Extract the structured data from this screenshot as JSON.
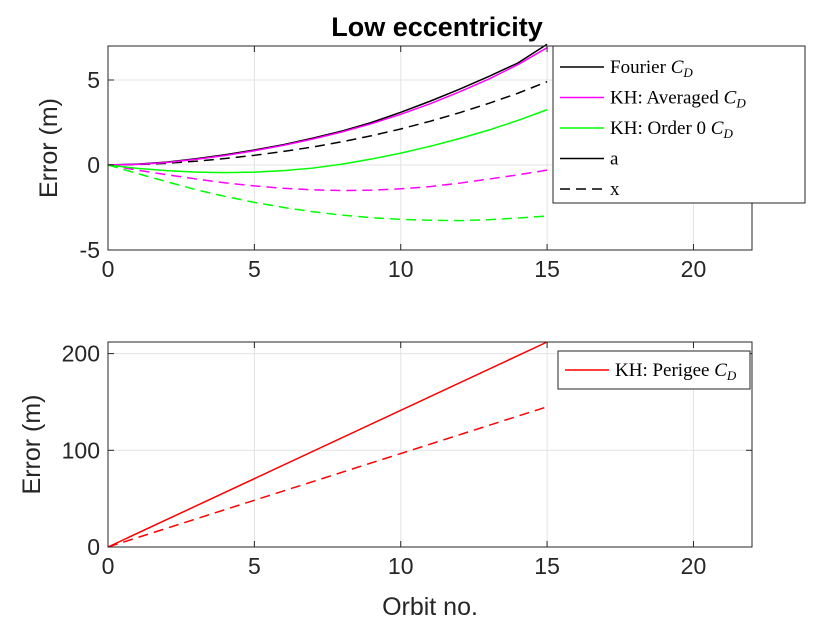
{
  "chart_data": [
    {
      "type": "line",
      "title": "Low eccentricity",
      "xlabel": "",
      "ylabel": "Error (m)",
      "xlim": [
        0,
        22
      ],
      "ylim": [
        -5,
        7
      ],
      "xticks": [
        0,
        5,
        10,
        15,
        20
      ],
      "yticks": [
        -5,
        0,
        5
      ],
      "xtick_labels": [
        "0",
        "5",
        "10",
        "15",
        "20"
      ],
      "ytick_labels": [
        "-5",
        "0",
        "5"
      ],
      "grid": true,
      "legend_position": "top-right",
      "legend": [
        {
          "text": "Fourier ",
          "math": "C",
          "sub": "D",
          "color": "#000000",
          "dash": "solid"
        },
        {
          "text": "KH: Averaged ",
          "math": "C",
          "sub": "D",
          "color": "#ff00ff",
          "dash": "solid"
        },
        {
          "text": "KH: Order 0 ",
          "math": "C",
          "sub": "D",
          "color": "#00ff00",
          "dash": "solid"
        },
        {
          "text": "a",
          "math": "",
          "sub": "",
          "color": "#000000",
          "dash": "solid"
        },
        {
          "text": "x",
          "math": "",
          "sub": "",
          "color": "#000000",
          "dash": "dashed"
        }
      ],
      "series": [
        {
          "name": "Fourier C_D (a)",
          "color": "#000000",
          "dash": "solid",
          "x": [
            0,
            1,
            2,
            3,
            4,
            5,
            6,
            7,
            8,
            9,
            10,
            11,
            12,
            13,
            14,
            15
          ],
          "y": [
            0,
            0.05,
            0.17,
            0.37,
            0.6,
            0.88,
            1.2,
            1.58,
            2.0,
            2.5,
            3.1,
            3.75,
            4.45,
            5.2,
            6.0,
            7.1
          ]
        },
        {
          "name": "Fourier C_D (x)",
          "color": "#000000",
          "dash": "dashed",
          "x": [
            0,
            1,
            2,
            3,
            4,
            5,
            6,
            7,
            8,
            9,
            10,
            11,
            12,
            13,
            14,
            15
          ],
          "y": [
            0,
            0.03,
            0.1,
            0.22,
            0.38,
            0.57,
            0.8,
            1.06,
            1.37,
            1.72,
            2.12,
            2.57,
            3.07,
            3.62,
            4.22,
            4.9
          ]
        },
        {
          "name": "KH: Averaged C_D (a)",
          "color": "#ff00ff",
          "dash": "solid",
          "x": [
            0,
            1,
            2,
            3,
            4,
            5,
            6,
            7,
            8,
            9,
            10,
            11,
            12,
            13,
            14,
            15
          ],
          "y": [
            0,
            0.04,
            0.15,
            0.33,
            0.56,
            0.84,
            1.16,
            1.53,
            1.95,
            2.43,
            2.98,
            3.6,
            4.3,
            5.05,
            5.9,
            6.9
          ]
        },
        {
          "name": "KH: Averaged C_D (x)",
          "color": "#ff00ff",
          "dash": "dashed",
          "x": [
            0,
            1,
            2,
            3,
            4,
            5,
            6,
            7,
            8,
            9,
            10,
            11,
            12,
            13,
            14,
            15
          ],
          "y": [
            0,
            -0.3,
            -0.57,
            -0.82,
            -1.05,
            -1.23,
            -1.37,
            -1.46,
            -1.5,
            -1.48,
            -1.4,
            -1.27,
            -1.07,
            -0.83,
            -0.58,
            -0.3
          ]
        },
        {
          "name": "KH: Order 0 C_D (a)",
          "color": "#00ff00",
          "dash": "solid",
          "x": [
            0,
            1,
            2,
            3,
            4,
            5,
            6,
            7,
            8,
            9,
            10,
            11,
            12,
            13,
            14,
            15
          ],
          "y": [
            0,
            -0.2,
            -0.33,
            -0.42,
            -0.45,
            -0.42,
            -0.33,
            -0.18,
            0.05,
            0.35,
            0.7,
            1.1,
            1.55,
            2.05,
            2.62,
            3.25
          ]
        },
        {
          "name": "KH: Order 0 C_D (x)",
          "color": "#00ff00",
          "dash": "dashed",
          "x": [
            0,
            1,
            2,
            3,
            4,
            5,
            6,
            7,
            8,
            9,
            10,
            11,
            12,
            13,
            14,
            15
          ],
          "y": [
            0,
            -0.5,
            -0.98,
            -1.45,
            -1.85,
            -2.2,
            -2.5,
            -2.75,
            -2.95,
            -3.1,
            -3.2,
            -3.25,
            -3.27,
            -3.22,
            -3.12,
            -3.0
          ]
        }
      ]
    },
    {
      "type": "line",
      "title": "",
      "xlabel": "Orbit no.",
      "ylabel": "Error (m)",
      "xlim": [
        0,
        22
      ],
      "ylim": [
        0,
        212
      ],
      "xticks": [
        0,
        5,
        10,
        15,
        20
      ],
      "yticks": [
        0,
        100,
        200
      ],
      "xtick_labels": [
        "0",
        "5",
        "10",
        "15",
        "20"
      ],
      "ytick_labels": [
        "0",
        "100",
        "200"
      ],
      "grid": true,
      "legend_position": "top-right",
      "legend": [
        {
          "text": "KH: Perigee ",
          "math": "C",
          "sub": "D",
          "color": "#ff0000",
          "dash": "solid"
        }
      ],
      "series": [
        {
          "name": "KH: Perigee C_D (a)",
          "color": "#ff0000",
          "dash": "solid",
          "x": [
            0,
            15
          ],
          "y": [
            0,
            212
          ]
        },
        {
          "name": "KH: Perigee C_D (x)",
          "color": "#ff0000",
          "dash": "dashed",
          "x": [
            0,
            15
          ],
          "y": [
            0,
            145
          ]
        }
      ]
    }
  ]
}
